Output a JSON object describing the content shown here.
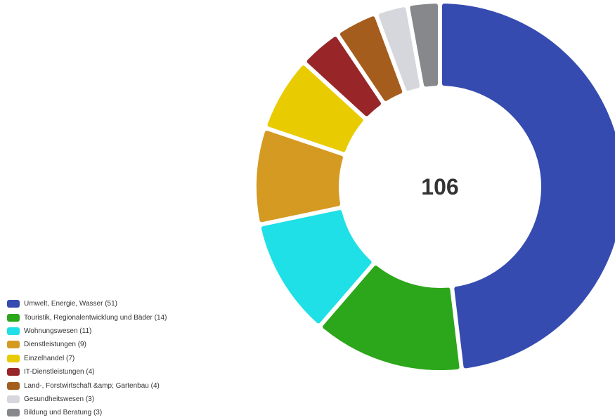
{
  "chart_data": {
    "type": "pie",
    "total": "106",
    "legend_placement": "bottom-left",
    "slices": [
      {
        "name": "Umwelt, Energie, Wasser",
        "value": 51,
        "label": "Umwelt, Energie, Wasser (51)",
        "color": "#364bb0"
      },
      {
        "name": "Touristik, Regionalentwicklung und Bäder",
        "value": 14,
        "label": "Touristik, Regionalentwicklung und Bäder (14)",
        "color": "#2ca61a"
      },
      {
        "name": "Wohnungswesen",
        "value": 11,
        "label": "Wohnungswesen (11)",
        "color": "#1ee0e6"
      },
      {
        "name": "Dienstleistungen",
        "value": 9,
        "label": "Dienstleistungen (9)",
        "color": "#d49a21"
      },
      {
        "name": "Einzelhandel",
        "value": 7,
        "label": "Einzelhandel (7)",
        "color": "#e8cb00"
      },
      {
        "name": "IT-Dienstleistungen",
        "value": 4,
        "label": "IT-Dienstleistungen (4)",
        "color": "#982628"
      },
      {
        "name": "Land-, Forstwirtschaft &amp; Gartenbau",
        "value": 4,
        "label": "Land-, Forstwirtschaft &amp; Gartenbau (4)",
        "color": "#a55d1e"
      },
      {
        "name": "Gesundheitswesen",
        "value": 3,
        "label": "Gesundheitswesen (3)",
        "color": "#d6d7dd"
      },
      {
        "name": "Bildung und Beratung",
        "value": 3,
        "label": "Bildung und Beratung (3)",
        "color": "#87888c"
      }
    ]
  }
}
